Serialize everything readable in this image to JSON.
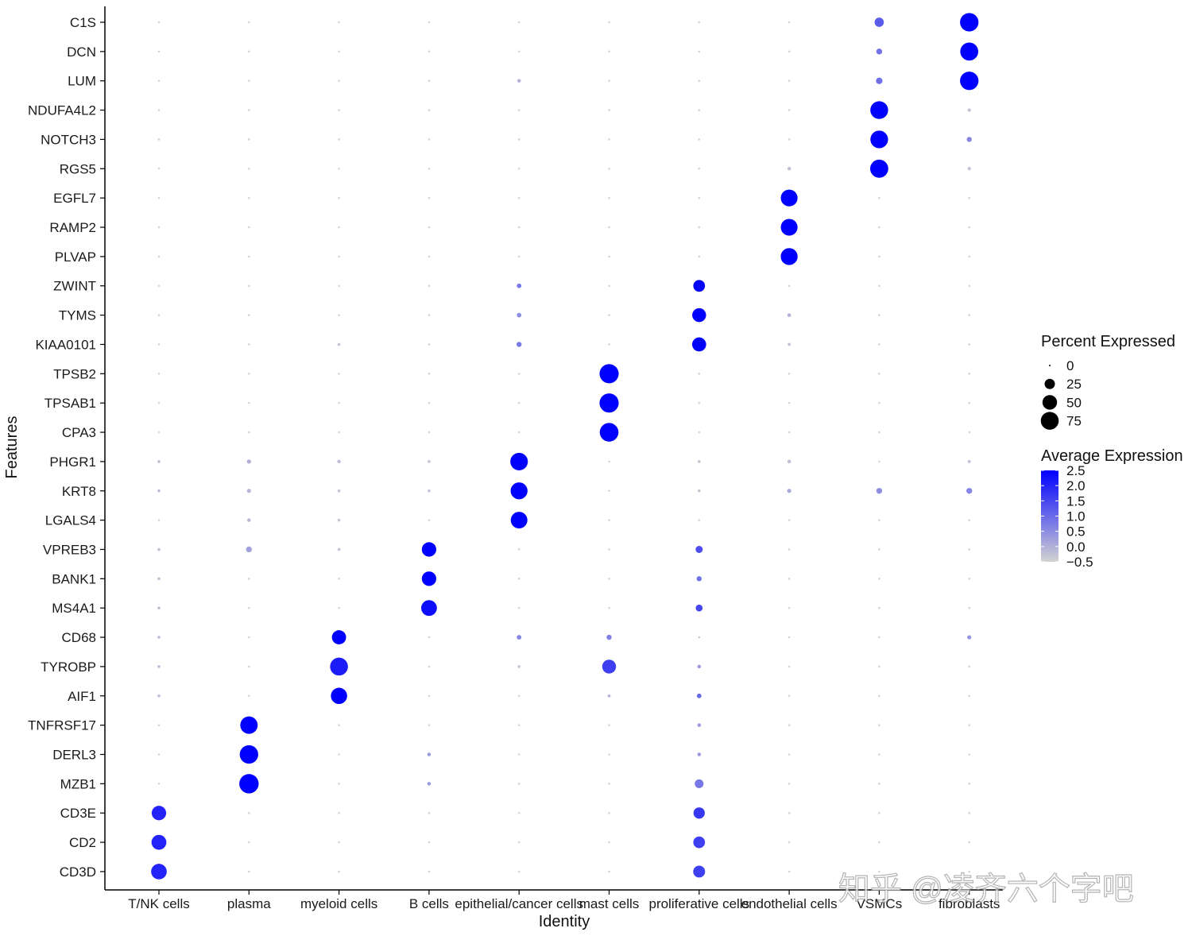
{
  "chart_data": {
    "type": "dotplot",
    "xlabel": "Identity",
    "ylabel": "Features",
    "identities": [
      "T/NK cells",
      "plasma",
      "myeloid cells",
      "B cells",
      "epithelial/cancer cells",
      "mast cells",
      "proliferative cells",
      "endothelial cells",
      "VSMCs",
      "fibroblasts"
    ],
    "features": [
      "C1S",
      "DCN",
      "LUM",
      "NDUFA4L2",
      "NOTCH3",
      "RGS5",
      "EGFL7",
      "RAMP2",
      "PLVAP",
      "ZWINT",
      "TYMS",
      "KIAA0101",
      "TPSB2",
      "TPSAB1",
      "CPA3",
      "PHGR1",
      "KRT8",
      "LGALS4",
      "VPREB3",
      "BANK1",
      "MS4A1",
      "CD68",
      "TYROBP",
      "AIF1",
      "TNFRSF17",
      "DERL3",
      "MZB1",
      "CD3E",
      "CD2",
      "CD3D"
    ],
    "percent_expressed": [
      [
        1,
        1,
        1,
        1,
        1,
        1,
        1,
        1,
        20,
        80
      ],
      [
        1,
        1,
        1,
        1,
        1,
        1,
        1,
        1,
        8,
        76
      ],
      [
        1,
        1,
        1,
        1,
        3,
        1,
        1,
        1,
        10,
        80
      ],
      [
        1,
        1,
        1,
        1,
        1,
        1,
        1,
        1,
        74,
        3
      ],
      [
        1,
        1,
        1,
        1,
        1,
        1,
        1,
        1,
        73,
        6
      ],
      [
        1,
        1,
        1,
        1,
        1,
        1,
        1,
        3,
        77,
        3
      ],
      [
        1,
        1,
        1,
        1,
        1,
        1,
        1,
        66,
        1,
        1
      ],
      [
        1,
        1,
        1,
        1,
        1,
        1,
        1,
        66,
        1,
        1
      ],
      [
        1,
        1,
        1,
        1,
        1,
        1,
        1,
        67,
        1,
        1
      ],
      [
        1,
        1,
        1,
        1,
        5,
        1,
        32,
        1,
        1,
        1
      ],
      [
        1,
        1,
        1,
        1,
        5,
        1,
        45,
        3,
        1,
        1
      ],
      [
        1,
        1,
        2,
        1,
        6,
        1,
        46,
        2,
        1,
        1
      ],
      [
        1,
        1,
        1,
        1,
        1,
        86,
        1,
        1,
        1,
        1
      ],
      [
        1,
        1,
        1,
        1,
        1,
        86,
        1,
        1,
        1,
        1
      ],
      [
        1,
        1,
        1,
        1,
        1,
        82,
        1,
        1,
        1,
        1
      ],
      [
        2,
        4,
        3,
        2,
        72,
        1,
        2,
        3,
        1,
        2
      ],
      [
        2,
        4,
        2,
        2,
        67,
        1,
        2,
        4,
        8,
        8
      ],
      [
        1,
        3,
        2,
        1,
        65,
        1,
        1,
        1,
        1,
        1
      ],
      [
        2,
        8,
        2,
        49,
        1,
        1,
        12,
        1,
        1,
        1
      ],
      [
        2,
        1,
        1,
        49,
        1,
        1,
        6,
        1,
        1,
        1
      ],
      [
        2,
        1,
        1,
        58,
        1,
        1,
        11,
        1,
        1,
        1
      ],
      [
        2,
        1,
        47,
        1,
        5,
        6,
        1,
        1,
        1,
        4
      ],
      [
        2,
        1,
        75,
        1,
        2,
        45,
        3,
        1,
        1,
        1
      ],
      [
        2,
        1,
        62,
        1,
        1,
        2,
        5,
        1,
        1,
        1
      ],
      [
        1,
        71,
        1,
        1,
        1,
        1,
        3,
        1,
        1,
        1
      ],
      [
        1,
        80,
        1,
        3,
        1,
        1,
        3,
        1,
        1,
        1
      ],
      [
        1,
        88,
        1,
        3,
        1,
        1,
        18,
        1,
        1,
        1
      ],
      [
        49,
        1,
        1,
        1,
        1,
        1,
        30,
        1,
        1,
        1
      ],
      [
        52,
        1,
        1,
        1,
        1,
        1,
        32,
        1,
        1,
        1
      ],
      [
        57,
        1,
        1,
        1,
        1,
        1,
        33,
        1,
        1,
        1
      ]
    ],
    "average_expression": [
      [
        -0.5,
        -0.5,
        -0.5,
        -0.5,
        -0.5,
        -0.5,
        -0.5,
        -0.5,
        1.2,
        2.5
      ],
      [
        -0.5,
        -0.5,
        -0.5,
        -0.5,
        -0.5,
        -0.5,
        -0.5,
        -0.5,
        0.9,
        2.5
      ],
      [
        -0.5,
        -0.5,
        -0.5,
        -0.5,
        0.0,
        -0.5,
        -0.5,
        -0.5,
        0.9,
        2.5
      ],
      [
        -0.5,
        -0.5,
        -0.5,
        -0.5,
        -0.5,
        -0.5,
        -0.5,
        -0.5,
        2.5,
        -0.3
      ],
      [
        -0.5,
        -0.5,
        -0.5,
        -0.5,
        -0.5,
        -0.5,
        -0.5,
        -0.5,
        2.5,
        0.6
      ],
      [
        -0.5,
        -0.5,
        -0.5,
        -0.5,
        -0.5,
        -0.5,
        -0.5,
        -0.2,
        2.5,
        -0.3
      ],
      [
        -0.5,
        -0.5,
        -0.5,
        -0.5,
        -0.5,
        -0.5,
        -0.5,
        2.5,
        -0.5,
        -0.5
      ],
      [
        -0.5,
        -0.5,
        -0.5,
        -0.5,
        -0.5,
        -0.5,
        -0.5,
        2.5,
        -0.5,
        -0.5
      ],
      [
        -0.5,
        -0.5,
        -0.5,
        -0.5,
        -0.5,
        -0.5,
        -0.5,
        2.5,
        -0.5,
        -0.5
      ],
      [
        -0.5,
        -0.5,
        -0.5,
        -0.5,
        0.8,
        -0.5,
        2.5,
        -0.5,
        -0.5,
        -0.5
      ],
      [
        -0.5,
        -0.5,
        -0.5,
        -0.5,
        0.5,
        -0.5,
        2.5,
        0.0,
        -0.5,
        -0.5
      ],
      [
        -0.5,
        -0.5,
        -0.3,
        -0.5,
        0.8,
        -0.5,
        2.5,
        -0.2,
        -0.5,
        -0.5
      ],
      [
        -0.5,
        -0.5,
        -0.5,
        -0.5,
        -0.5,
        2.5,
        -0.5,
        -0.5,
        -0.5,
        -0.5
      ],
      [
        -0.5,
        -0.5,
        -0.5,
        -0.5,
        -0.5,
        2.5,
        -0.5,
        -0.5,
        -0.5,
        -0.5
      ],
      [
        -0.5,
        -0.5,
        -0.5,
        -0.5,
        -0.5,
        2.5,
        -0.5,
        -0.5,
        -0.5,
        -0.5
      ],
      [
        -0.2,
        0.0,
        -0.2,
        -0.3,
        2.5,
        -0.5,
        -0.3,
        -0.2,
        -0.5,
        -0.2
      ],
      [
        -0.2,
        -0.1,
        -0.3,
        -0.3,
        2.5,
        -0.5,
        -0.3,
        0.1,
        0.5,
        0.6
      ],
      [
        -0.5,
        -0.1,
        -0.3,
        -0.5,
        2.5,
        -0.5,
        -0.5,
        -0.5,
        -0.5,
        -0.5
      ],
      [
        -0.2,
        0.2,
        -0.3,
        2.5,
        -0.5,
        -0.5,
        1.4,
        -0.5,
        -0.5,
        -0.5
      ],
      [
        -0.2,
        -0.5,
        -0.5,
        2.5,
        -0.5,
        -0.5,
        0.9,
        -0.5,
        -0.5,
        -0.5
      ],
      [
        -0.2,
        -0.5,
        -0.5,
        2.3,
        -0.5,
        -0.5,
        1.5,
        -0.5,
        -0.5,
        -0.5
      ],
      [
        -0.2,
        -0.5,
        2.5,
        -0.5,
        0.6,
        0.7,
        -0.3,
        -0.5,
        -0.5,
        0.4
      ],
      [
        -0.2,
        -0.5,
        2.1,
        -0.5,
        -0.3,
        1.6,
        0.3,
        -0.5,
        -0.5,
        -0.5
      ],
      [
        -0.2,
        -0.5,
        2.5,
        -0.5,
        -0.5,
        0.0,
        1.0,
        -0.5,
        -0.5,
        -0.5
      ],
      [
        -0.5,
        2.5,
        -0.5,
        -0.5,
        -0.5,
        -0.5,
        0.3,
        -0.5,
        -0.5,
        -0.5
      ],
      [
        -0.5,
        2.5,
        -0.5,
        0.3,
        -0.5,
        -0.5,
        0.3,
        -0.5,
        -0.5,
        -0.5
      ],
      [
        -0.5,
        2.5,
        -0.5,
        0.3,
        -0.5,
        -0.5,
        0.8,
        -0.5,
        -0.5,
        -0.5
      ],
      [
        2.0,
        -0.5,
        -0.5,
        -0.5,
        -0.5,
        -0.5,
        1.7,
        -0.5,
        -0.5,
        -0.5
      ],
      [
        2.0,
        -0.5,
        -0.5,
        -0.5,
        -0.5,
        -0.5,
        1.6,
        -0.5,
        -0.5,
        -0.5
      ],
      [
        2.0,
        -0.5,
        -0.5,
        -0.5,
        -0.5,
        -0.5,
        1.6,
        -0.5,
        -0.5,
        -0.5
      ]
    ],
    "legend_size": {
      "title": "Percent Expressed",
      "breaks": [
        0,
        25,
        50,
        75
      ],
      "labels": [
        "0",
        "25",
        "50",
        "75"
      ]
    },
    "legend_color": {
      "title": "Average Expression",
      "range": [
        -0.5,
        2.5
      ],
      "breaks": [
        2.5,
        2.0,
        1.5,
        1.0,
        0.5,
        0.0,
        -0.5
      ],
      "labels": [
        "2.5",
        "2.0",
        "1.5",
        "1.0",
        "0.5",
        "0.0",
        "−0.5"
      ],
      "low_color": "#d3d3d3",
      "high_color": "#0000ff"
    },
    "legend_position": "right",
    "grid": false
  },
  "watermark": "知乎 @凌齐六个字吧"
}
